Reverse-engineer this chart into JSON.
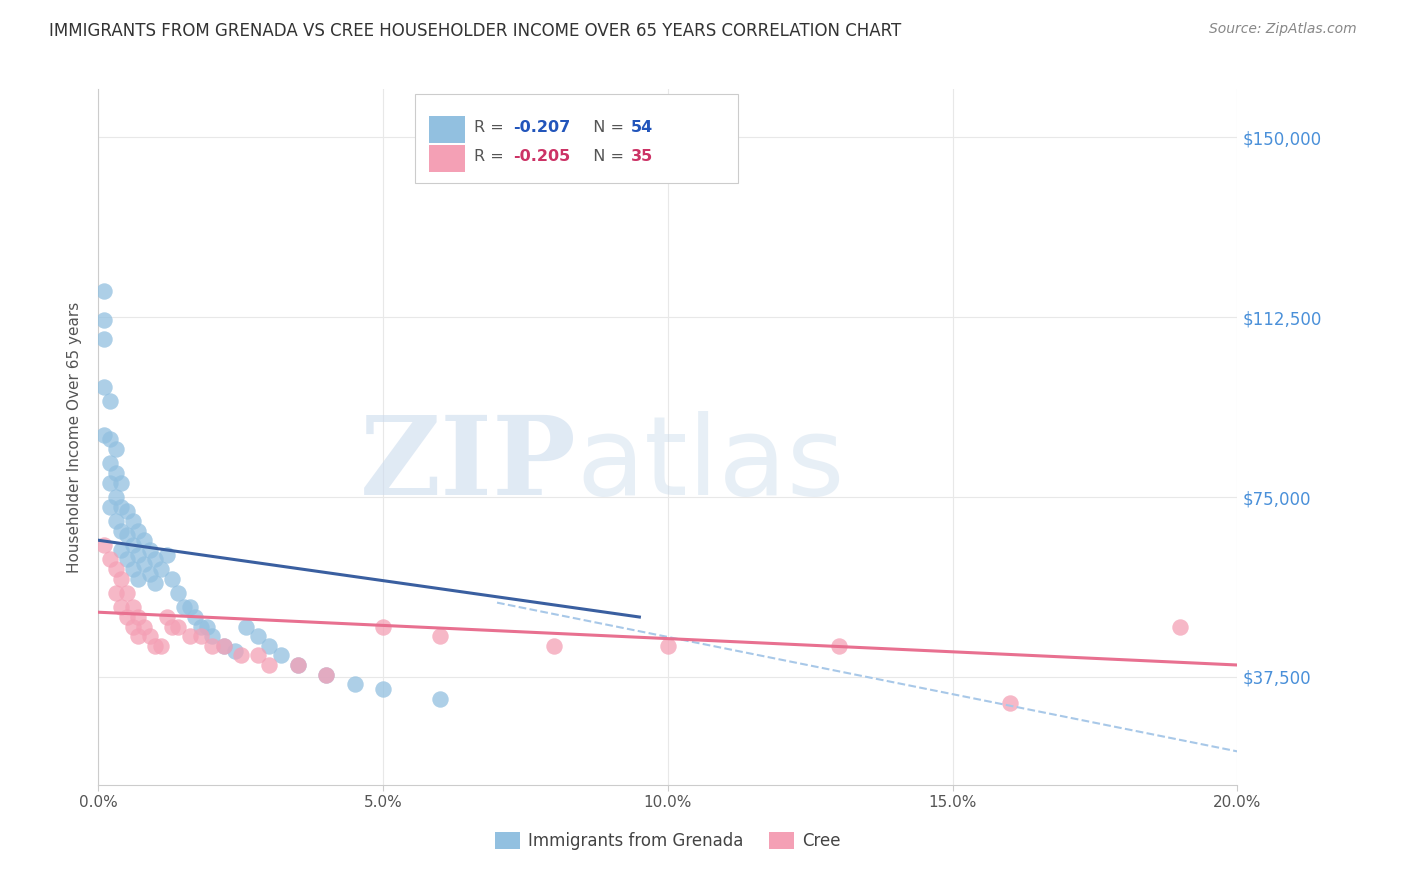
{
  "title": "IMMIGRANTS FROM GRENADA VS CREE HOUSEHOLDER INCOME OVER 65 YEARS CORRELATION CHART",
  "source": "Source: ZipAtlas.com",
  "xlabel_ticks": [
    "0.0%",
    "5.0%",
    "10.0%",
    "15.0%",
    "20.0%"
  ],
  "xlabel_tick_vals": [
    0.0,
    0.05,
    0.1,
    0.15,
    0.2
  ],
  "ylabel": "Householder Income Over 65 years",
  "ylabel_ticks": [
    "$37,500",
    "$75,000",
    "$112,500",
    "$150,000"
  ],
  "ylabel_tick_vals": [
    37500,
    75000,
    112500,
    150000
  ],
  "xlim": [
    0.0,
    0.2
  ],
  "ylim": [
    15000,
    160000
  ],
  "legend_blue_R": "-0.207",
  "legend_blue_N": "54",
  "legend_pink_R": "-0.205",
  "legend_pink_N": "35",
  "blue_color": "#92c0e0",
  "pink_color": "#f4a0b5",
  "blue_line_color": "#3a5fa0",
  "pink_line_color": "#e87090",
  "dashed_line_color": "#a8c8e8",
  "right_axis_label_color": "#4a90d9",
  "background_color": "#ffffff",
  "grid_color": "#e8e8e8",
  "blue_x": [
    0.001,
    0.001,
    0.001,
    0.001,
    0.001,
    0.002,
    0.002,
    0.002,
    0.002,
    0.002,
    0.003,
    0.003,
    0.003,
    0.003,
    0.004,
    0.004,
    0.004,
    0.004,
    0.005,
    0.005,
    0.005,
    0.006,
    0.006,
    0.006,
    0.007,
    0.007,
    0.007,
    0.008,
    0.008,
    0.009,
    0.009,
    0.01,
    0.01,
    0.011,
    0.012,
    0.013,
    0.014,
    0.015,
    0.016,
    0.017,
    0.018,
    0.019,
    0.02,
    0.022,
    0.024,
    0.026,
    0.028,
    0.03,
    0.032,
    0.035,
    0.04,
    0.045,
    0.05,
    0.06
  ],
  "blue_y": [
    118000,
    112000,
    108000,
    98000,
    88000,
    95000,
    87000,
    82000,
    78000,
    73000,
    85000,
    80000,
    75000,
    70000,
    78000,
    73000,
    68000,
    64000,
    72000,
    67000,
    62000,
    70000,
    65000,
    60000,
    68000,
    63000,
    58000,
    66000,
    61000,
    64000,
    59000,
    62000,
    57000,
    60000,
    63000,
    58000,
    55000,
    52000,
    52000,
    50000,
    48000,
    48000,
    46000,
    44000,
    43000,
    48000,
    46000,
    44000,
    42000,
    40000,
    38000,
    36000,
    35000,
    33000
  ],
  "pink_x": [
    0.001,
    0.002,
    0.003,
    0.003,
    0.004,
    0.004,
    0.005,
    0.005,
    0.006,
    0.006,
    0.007,
    0.007,
    0.008,
    0.009,
    0.01,
    0.011,
    0.012,
    0.013,
    0.014,
    0.016,
    0.018,
    0.02,
    0.022,
    0.025,
    0.028,
    0.03,
    0.035,
    0.04,
    0.05,
    0.06,
    0.08,
    0.1,
    0.13,
    0.16,
    0.19
  ],
  "pink_y": [
    65000,
    62000,
    60000,
    55000,
    58000,
    52000,
    55000,
    50000,
    52000,
    48000,
    50000,
    46000,
    48000,
    46000,
    44000,
    44000,
    50000,
    48000,
    48000,
    46000,
    46000,
    44000,
    44000,
    42000,
    42000,
    40000,
    40000,
    38000,
    48000,
    46000,
    44000,
    44000,
    44000,
    32000,
    48000
  ],
  "blue_line_x": [
    0.0,
    0.095
  ],
  "blue_line_y": [
    66000,
    50000
  ],
  "pink_line_x": [
    0.0,
    0.2
  ],
  "pink_line_y": [
    51000,
    40000
  ],
  "dashed_line_x": [
    0.07,
    0.2
  ],
  "dashed_line_y": [
    53000,
    22000
  ]
}
